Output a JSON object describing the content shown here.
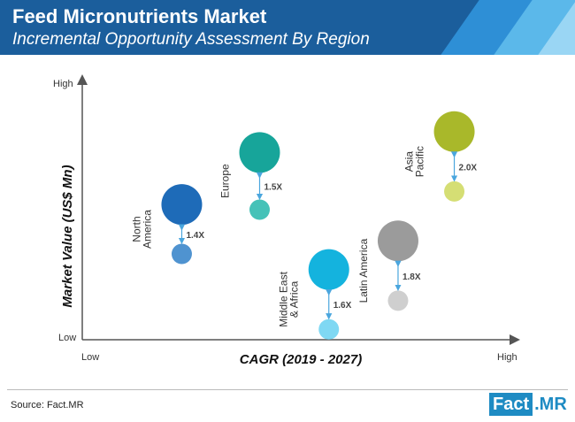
{
  "header": {
    "title": "Feed Micronutrients Market",
    "subtitle": "Incremental Opportunity Assessment By Region"
  },
  "colors": {
    "header_bg": "#1b5e9c",
    "stripe_1": "#2e8fd6",
    "stripe_2": "#5bb8ea",
    "stripe_3": "#9ad6f4",
    "axis": "#555555",
    "arrow": "#4aa6de"
  },
  "chart_data": {
    "type": "scatter",
    "title": "Feed Micronutrients Market",
    "subtitle": "Incremental Opportunity Assessment By Region",
    "xlabel": "CAGR (2019 - 2027)",
    "ylabel": "Market Value (US$ Mn)",
    "x_ticks": {
      "low": "Low",
      "high": "High"
    },
    "y_ticks": {
      "low": "Low",
      "high": "High"
    },
    "xlim": [
      0,
      100
    ],
    "ylim": [
      0,
      100
    ],
    "points": [
      {
        "name": "North America",
        "label_lines": [
          "North",
          "America"
        ],
        "multiplier": "1.4X",
        "x": 23,
        "y_2019": 33,
        "y_2027": 52,
        "color_big": "#1e6bb8",
        "color_small": "#4f93d0",
        "size_big": 1.0,
        "size_small": 0.5
      },
      {
        "name": "Europe",
        "label_lines": [
          "Europe"
        ],
        "multiplier": "1.5X",
        "x": 41,
        "y_2019": 50,
        "y_2027": 72,
        "color_big": "#17a59a",
        "color_small": "#45c2b8",
        "size_big": 1.0,
        "size_small": 0.5
      },
      {
        "name": "Middle East & Africa",
        "label_lines": [
          "Middle East",
          "& Africa"
        ],
        "multiplier": "1.6X",
        "x": 57,
        "y_2019": 4,
        "y_2027": 27,
        "color_big": "#14b3de",
        "color_small": "#7fd8f3",
        "size_big": 1.0,
        "size_small": 0.5
      },
      {
        "name": "Latin America",
        "label_lines": [
          "Latin America"
        ],
        "multiplier": "1.8X",
        "x": 73,
        "y_2019": 15,
        "y_2027": 38,
        "color_big": "#9b9b9b",
        "color_small": "#cfcfcf",
        "size_big": 1.0,
        "size_small": 0.5
      },
      {
        "name": "Asia Pacific",
        "label_lines": [
          "Asia",
          "Pacific"
        ],
        "multiplier": "2.0X",
        "x": 86,
        "y_2019": 57,
        "y_2027": 80,
        "color_big": "#a9b82a",
        "color_small": "#d5de74",
        "size_big": 1.0,
        "size_small": 0.5
      }
    ]
  },
  "footer": {
    "source": "Source: Fact.MR",
    "logo_part1": "Fact",
    "logo_part2": ".MR"
  }
}
